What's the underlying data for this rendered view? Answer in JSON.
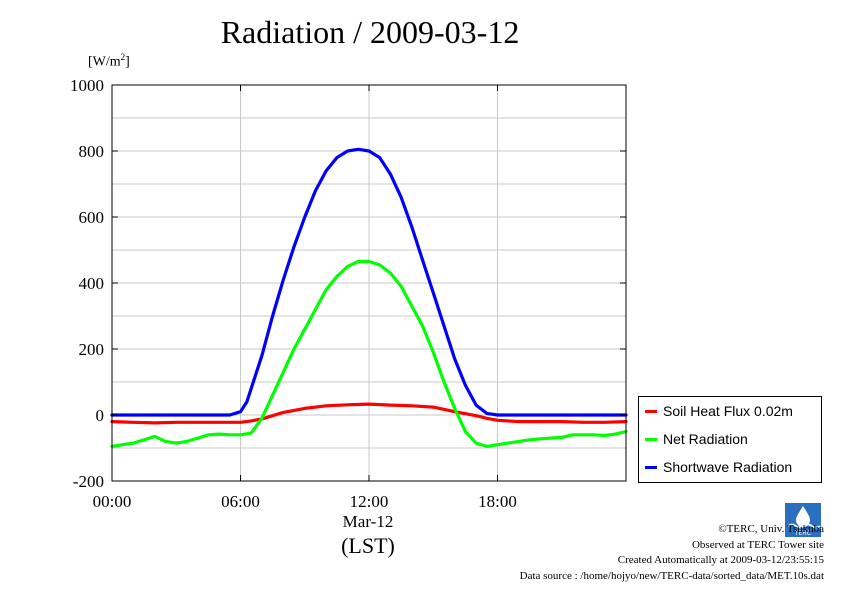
{
  "chart_data": {
    "type": "line",
    "title": "Radiation / 2009-03-12",
    "ylabel_prefix": "[W/m",
    "ylabel_sup": "2",
    "ylabel_suffix": "]",
    "xlabel_date": "Mar-12",
    "xlabel_unit": "(LST)",
    "ylim": [
      -200,
      1000
    ],
    "xlim_hours": [
      0,
      24
    ],
    "grid": true,
    "legend_position": "right-bottom",
    "y_ticks": [
      "1000",
      "800",
      "600",
      "400",
      "200",
      "0",
      "-200"
    ],
    "x_ticks": [
      "00:00",
      "06:00",
      "12:00",
      "18:00"
    ],
    "x_tick_hours": [
      0,
      6,
      12,
      18
    ],
    "series": [
      {
        "name": "Soil Heat Flux 0.02m",
        "color": "#ff0000",
        "x": [
          0,
          1,
          2,
          3,
          4,
          5,
          6,
          6.5,
          7,
          7.5,
          8,
          9,
          10,
          11,
          12,
          13,
          14,
          15,
          16,
          17,
          17.5,
          18,
          19,
          20,
          21,
          22,
          23,
          24
        ],
        "y": [
          -20,
          -22,
          -24,
          -22,
          -22,
          -22,
          -22,
          -18,
          -12,
          -2,
          8,
          20,
          28,
          31,
          33,
          30,
          28,
          24,
          10,
          -2,
          -10,
          -16,
          -20,
          -20,
          -20,
          -22,
          -22,
          -20
        ]
      },
      {
        "name": "Net Radiation",
        "color": "#00ff00",
        "x": [
          0,
          0.5,
          1,
          1.5,
          2,
          2.5,
          3,
          3.5,
          4,
          4.5,
          5,
          5.5,
          6,
          6.5,
          7,
          7.5,
          8,
          8.5,
          9,
          9.5,
          10,
          10.5,
          11,
          11.5,
          12,
          12.5,
          13,
          13.5,
          14,
          14.5,
          15,
          15.5,
          16,
          16.5,
          17,
          17.5,
          18,
          18.5,
          19,
          19.5,
          20,
          20.5,
          21,
          21.5,
          22,
          22.5,
          23,
          23.5,
          24
        ],
        "y": [
          -95,
          -90,
          -85,
          -75,
          -65,
          -80,
          -85,
          -80,
          -70,
          -60,
          -58,
          -60,
          -60,
          -55,
          -10,
          60,
          130,
          200,
          260,
          320,
          380,
          420,
          450,
          465,
          465,
          455,
          430,
          390,
          330,
          270,
          190,
          100,
          20,
          -50,
          -85,
          -95,
          -90,
          -85,
          -80,
          -75,
          -72,
          -70,
          -68,
          -60,
          -60,
          -60,
          -62,
          -58,
          -50
        ]
      },
      {
        "name": "Shortwave Radiation",
        "color": "#0000ff",
        "x": [
          0,
          1,
          2,
          3,
          4,
          5,
          5.5,
          6,
          6.3,
          6.6,
          7,
          7.5,
          8,
          8.5,
          9,
          9.5,
          10,
          10.5,
          11,
          11.5,
          12,
          12.5,
          13,
          13.5,
          14,
          14.5,
          15,
          15.5,
          16,
          16.5,
          17,
          17.5,
          18,
          19,
          20,
          21,
          22,
          23,
          24
        ],
        "y": [
          0,
          0,
          0,
          0,
          0,
          0,
          0,
          10,
          40,
          100,
          180,
          300,
          410,
          510,
          600,
          680,
          740,
          780,
          800,
          805,
          800,
          780,
          730,
          660,
          570,
          470,
          370,
          270,
          170,
          90,
          30,
          5,
          0,
          0,
          0,
          0,
          0,
          0,
          0
        ]
      }
    ]
  },
  "credits": {
    "copyright": "©TERC, Univ. Tsukuba",
    "observed": "Observed at TERC Tower site",
    "created": "Created Automatically at 2009-03-12/23:55:15",
    "source": "Data source : /home/hojyo/new/TERC-data/sorted_data/MET.10s.dat",
    "logo_text": "TERC"
  }
}
